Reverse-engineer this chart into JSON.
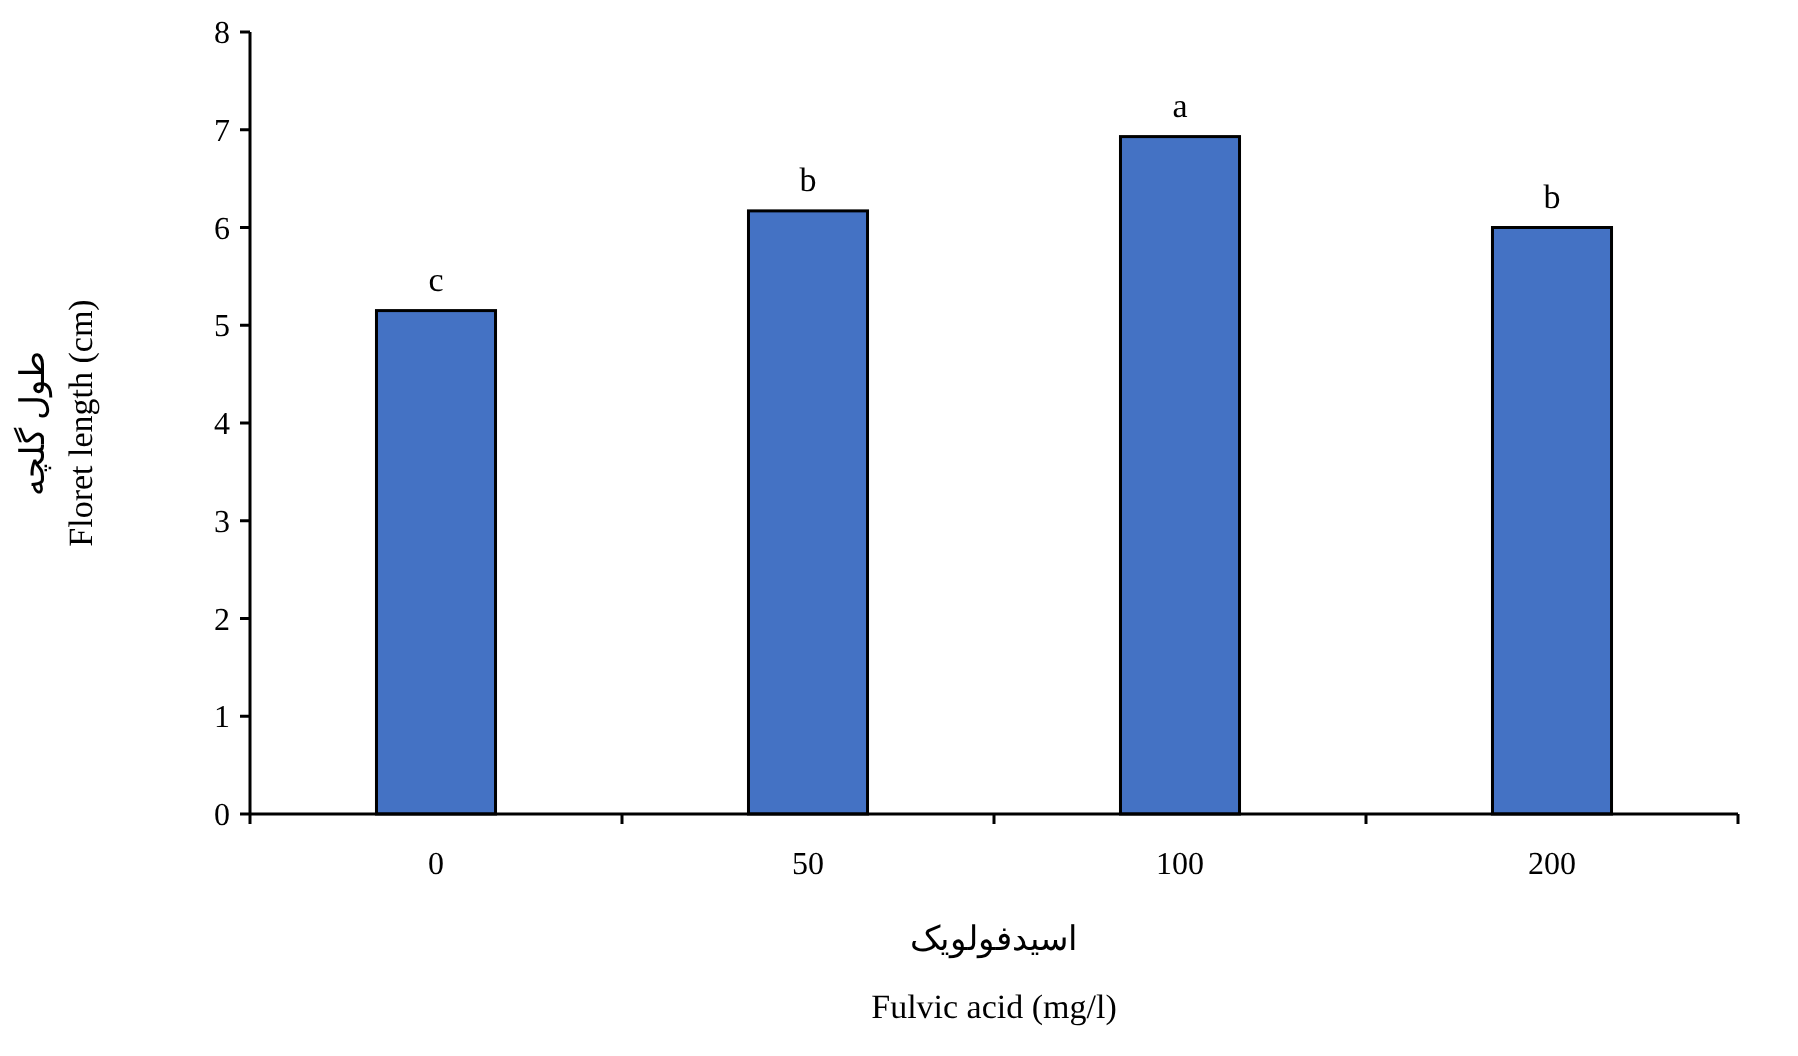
{
  "chart_data": {
    "type": "bar",
    "xlabel": "اسیدفولویک\nFulvic acid (mg/l)",
    "ylabel": "طول گلچه\nFloret length (cm)",
    "categories": [
      "0",
      "50",
      "100",
      "200"
    ],
    "values": [
      5.15,
      6.17,
      6.93,
      6.0
    ],
    "color": "#4472c4",
    "ylim": [
      0,
      8
    ],
    "yticks": [
      0,
      1,
      2,
      3,
      4,
      5,
      6,
      7,
      8
    ],
    "grid": false,
    "annotations": [
      {
        "text": "c",
        "x": "0",
        "y": 5.15
      },
      {
        "text": "b",
        "x": "50",
        "y": 6.17
      },
      {
        "text": "a",
        "x": "100",
        "y": 6.93
      },
      {
        "text": "b",
        "x": "200",
        "y": 6.0
      }
    ]
  }
}
